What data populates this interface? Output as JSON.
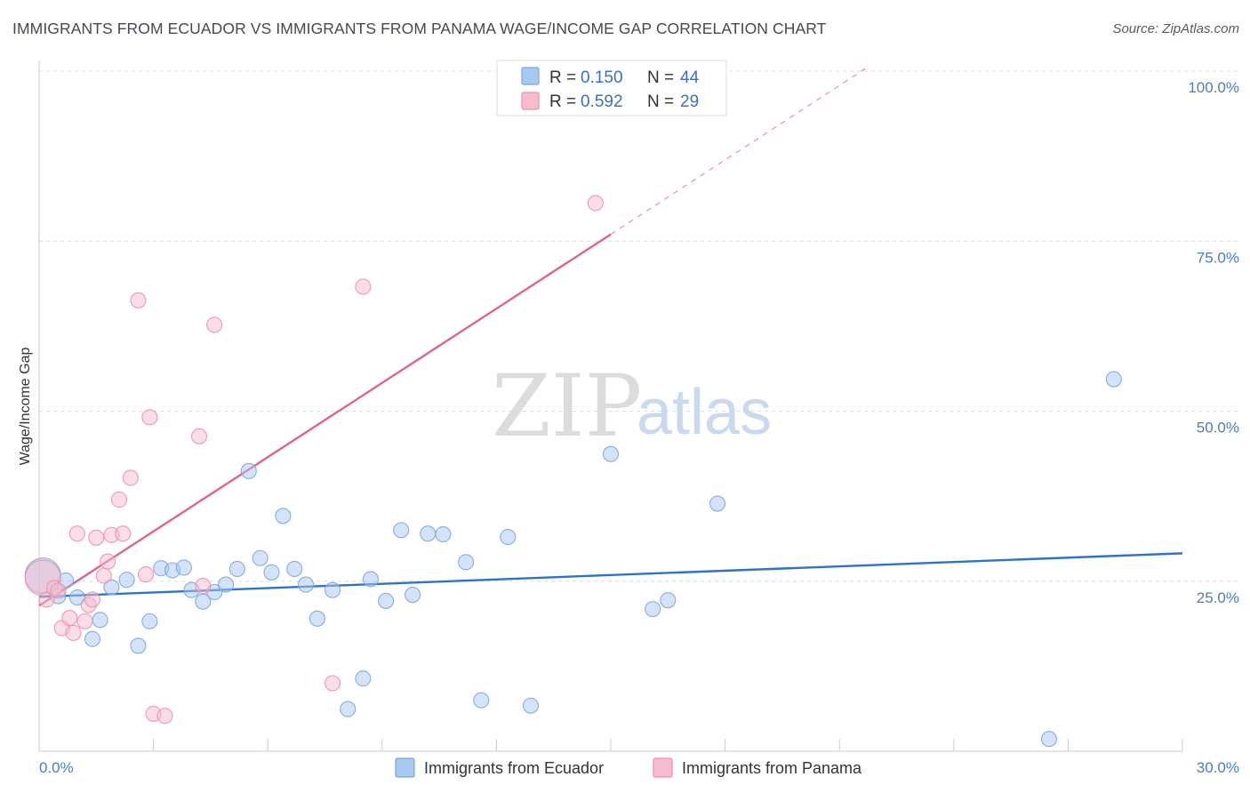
{
  "title": "IMMIGRANTS FROM ECUADOR VS IMMIGRANTS FROM PANAMA WAGE/INCOME GAP CORRELATION CHART",
  "source": "Source: ZipAtlas.com",
  "watermark": {
    "zip": "ZIP",
    "atlas": "atlas"
  },
  "colors": {
    "ecuador_fill": "#a9c8f0",
    "ecuador_stroke": "#7aa6e0",
    "ecuador_line": "#2f72cc",
    "panama_fill": "#f6bccd",
    "panama_stroke": "#eb91ab",
    "panama_line": "#e0628d",
    "tick_label": "#4a7cc7",
    "grid": "#dddddd"
  },
  "legend": {
    "rows": [
      {
        "r_label": "R = ",
        "r_value": "0.150",
        "n_label": "N = ",
        "n_value": "44"
      },
      {
        "r_label": "R = ",
        "r_value": "0.592",
        "n_label": "N = ",
        "n_value": "29"
      }
    ]
  },
  "chart_data": {
    "type": "scatter",
    "title": "IMMIGRANTS FROM ECUADOR VS IMMIGRANTS FROM PANAMA WAGE/INCOME GAP CORRELATION CHART",
    "xlabel": "",
    "ylabel": "Wage/Income Gap",
    "xlim": [
      0,
      30
    ],
    "ylim": [
      0,
      100
    ],
    "x_tick_labels": [
      "0.0%",
      "30.0%"
    ],
    "y_ticks": [
      25,
      50,
      75,
      100
    ],
    "y_tick_labels": [
      "25.0%",
      "50.0%",
      "75.0%",
      "100.0%"
    ],
    "grid": true,
    "legend_position": "top-center",
    "series": [
      {
        "name": "Immigrants from Ecuador",
        "r": 0.15,
        "n": 44,
        "trend": {
          "x": [
            0,
            30
          ],
          "y": [
            22.7,
            29.1
          ]
        },
        "points": [
          {
            "x": 0.1,
            "y": 25.8,
            "big": true
          },
          {
            "x": 0.5,
            "y": 22.8
          },
          {
            "x": 0.7,
            "y": 25.1
          },
          {
            "x": 1.0,
            "y": 22.6
          },
          {
            "x": 1.4,
            "y": 16.5
          },
          {
            "x": 1.6,
            "y": 19.3
          },
          {
            "x": 1.9,
            "y": 24.1
          },
          {
            "x": 2.3,
            "y": 25.2
          },
          {
            "x": 2.6,
            "y": 15.5
          },
          {
            "x": 2.9,
            "y": 19.1
          },
          {
            "x": 3.2,
            "y": 26.9
          },
          {
            "x": 3.5,
            "y": 26.6
          },
          {
            "x": 3.8,
            "y": 27.0
          },
          {
            "x": 4.0,
            "y": 23.7
          },
          {
            "x": 4.3,
            "y": 22.0
          },
          {
            "x": 4.6,
            "y": 23.4
          },
          {
            "x": 4.9,
            "y": 24.5
          },
          {
            "x": 5.2,
            "y": 26.8
          },
          {
            "x": 5.5,
            "y": 41.2
          },
          {
            "x": 5.8,
            "y": 28.4
          },
          {
            "x": 6.1,
            "y": 26.3
          },
          {
            "x": 6.4,
            "y": 34.6
          },
          {
            "x": 6.7,
            "y": 26.8
          },
          {
            "x": 7.0,
            "y": 24.5
          },
          {
            "x": 7.3,
            "y": 19.5
          },
          {
            "x": 7.7,
            "y": 23.7
          },
          {
            "x": 8.1,
            "y": 6.2
          },
          {
            "x": 8.5,
            "y": 10.7
          },
          {
            "x": 8.7,
            "y": 25.3
          },
          {
            "x": 9.1,
            "y": 22.1
          },
          {
            "x": 9.5,
            "y": 32.5
          },
          {
            "x": 9.8,
            "y": 23.0
          },
          {
            "x": 10.2,
            "y": 32.0
          },
          {
            "x": 10.6,
            "y": 31.9
          },
          {
            "x": 11.2,
            "y": 27.8
          },
          {
            "x": 11.6,
            "y": 7.5
          },
          {
            "x": 12.3,
            "y": 31.5
          },
          {
            "x": 12.9,
            "y": 6.7
          },
          {
            "x": 15.0,
            "y": 43.7
          },
          {
            "x": 16.1,
            "y": 20.9
          },
          {
            "x": 16.5,
            "y": 22.2
          },
          {
            "x": 17.8,
            "y": 36.4
          },
          {
            "x": 26.5,
            "y": 1.8
          },
          {
            "x": 28.2,
            "y": 54.7
          }
        ]
      },
      {
        "name": "Immigrants from Panama",
        "r": 0.592,
        "n": 29,
        "trend": {
          "x": [
            0,
            15
          ],
          "y": [
            21.4,
            76.0
          ]
        },
        "trend_dashed": {
          "x": [
            15,
            21.8
          ],
          "y": [
            76.0,
            100.8
          ]
        },
        "points": [
          {
            "x": 0.1,
            "y": 25.5,
            "big": true
          },
          {
            "x": 0.2,
            "y": 22.3
          },
          {
            "x": 0.4,
            "y": 24.0
          },
          {
            "x": 0.5,
            "y": 23.6
          },
          {
            "x": 0.6,
            "y": 18.1
          },
          {
            "x": 0.8,
            "y": 19.6
          },
          {
            "x": 0.9,
            "y": 17.4
          },
          {
            "x": 1.0,
            "y": 32.0
          },
          {
            "x": 1.2,
            "y": 19.1
          },
          {
            "x": 1.3,
            "y": 21.5
          },
          {
            "x": 1.4,
            "y": 22.3
          },
          {
            "x": 1.5,
            "y": 31.4
          },
          {
            "x": 1.7,
            "y": 25.8
          },
          {
            "x": 1.8,
            "y": 27.9
          },
          {
            "x": 1.9,
            "y": 31.8
          },
          {
            "x": 2.1,
            "y": 37.0
          },
          {
            "x": 2.2,
            "y": 32.0
          },
          {
            "x": 2.4,
            "y": 40.2
          },
          {
            "x": 2.6,
            "y": 66.3
          },
          {
            "x": 2.8,
            "y": 26.0
          },
          {
            "x": 2.9,
            "y": 49.1
          },
          {
            "x": 3.0,
            "y": 5.5
          },
          {
            "x": 3.3,
            "y": 5.2
          },
          {
            "x": 4.2,
            "y": 46.3
          },
          {
            "x": 4.3,
            "y": 24.3
          },
          {
            "x": 4.6,
            "y": 62.7
          },
          {
            "x": 7.7,
            "y": 10.0
          },
          {
            "x": 8.5,
            "y": 68.3
          },
          {
            "x": 14.6,
            "y": 80.6
          }
        ]
      }
    ]
  },
  "bottom_legend": {
    "items": [
      {
        "label": "Immigrants from Ecuador"
      },
      {
        "label": "Immigrants from Panama"
      }
    ]
  }
}
